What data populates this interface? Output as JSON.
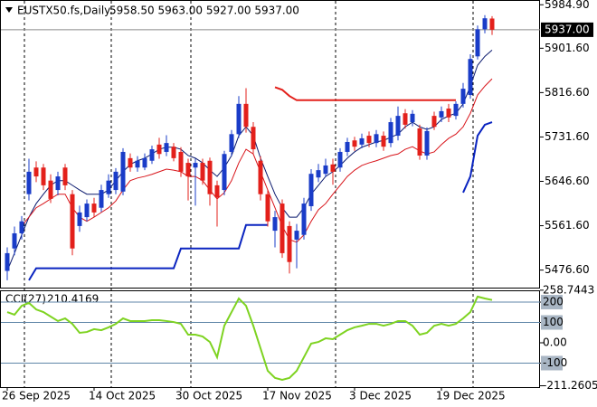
{
  "chart_data": [
    {
      "type": "candlestick",
      "title": "EUSTX50.fs,Daily",
      "subtitle": "5958.50 5963.00 5927.00 5937.00",
      "categories": [
        "26 Sep 2025",
        null,
        null,
        null,
        null,
        null,
        null,
        null,
        null,
        null,
        null,
        null,
        "14 Oct 2025",
        null,
        null,
        null,
        null,
        null,
        null,
        null,
        null,
        null,
        null,
        null,
        "30 Oct 2025",
        null,
        null,
        null,
        null,
        null,
        null,
        null,
        null,
        null,
        null,
        null,
        "17 Nov 2025",
        null,
        null,
        null,
        null,
        null,
        null,
        null,
        null,
        null,
        null,
        null,
        "3 Dec 2025",
        null,
        null,
        null,
        null,
        null,
        null,
        null,
        null,
        null,
        null,
        null,
        "19 Dec 2025",
        null,
        null,
        null,
        null,
        null,
        null,
        null
      ],
      "open": [
        5475,
        5518,
        5547,
        5622,
        5673,
        5673,
        5648,
        5630,
        5673,
        5622,
        5561,
        5578,
        5604,
        5596,
        5622,
        5630,
        5627,
        5691,
        5673,
        5673,
        5686,
        5717,
        5703,
        5713,
        5703,
        5682,
        5673,
        5682,
        5686,
        5639,
        5630,
        5703,
        5737,
        5795,
        5751,
        5686,
        5622,
        5552,
        5604,
        5561,
        5535,
        5544,
        5599,
        5654,
        5661,
        5679,
        5673,
        5703,
        5725,
        5717,
        5734,
        5720,
        5734,
        5720,
        5734,
        5777,
        5760,
        5748,
        5696,
        5772,
        5769,
        5786,
        5772,
        5795,
        5812,
        5886,
        5938,
        5958.5
      ],
      "high": [
        5520,
        5560,
        5580,
        5690,
        5685,
        5680,
        5660,
        5665,
        5680,
        5630,
        5600,
        5612,
        5615,
        5640,
        5660,
        5672,
        5710,
        5700,
        5695,
        5700,
        5715,
        5730,
        5735,
        5720,
        5712,
        5690,
        5690,
        5690,
        5692,
        5648,
        5705,
        5745,
        5810,
        5825,
        5760,
        5695,
        5630,
        5590,
        5612,
        5570,
        5565,
        5615,
        5670,
        5680,
        5690,
        5690,
        5710,
        5730,
        5732,
        5738,
        5742,
        5745,
        5742,
        5768,
        5790,
        5785,
        5783,
        5755,
        5750,
        5780,
        5790,
        5795,
        5800,
        5835,
        5890,
        5945,
        5965,
        5963
      ],
      "low": [
        5457,
        5505,
        5535,
        5610,
        5645,
        5630,
        5605,
        5620,
        5630,
        5505,
        5550,
        5570,
        5578,
        5588,
        5615,
        5622,
        5620,
        5665,
        5665,
        5668,
        5680,
        5690,
        5695,
        5685,
        5655,
        5610,
        5600,
        5640,
        5600,
        5560,
        5620,
        5695,
        5730,
        5740,
        5700,
        5610,
        5560,
        5520,
        5500,
        5470,
        5480,
        5535,
        5590,
        5645,
        5655,
        5640,
        5665,
        5695,
        5705,
        5710,
        5712,
        5712,
        5705,
        5712,
        5725,
        5748,
        5752,
        5688,
        5688,
        5745,
        5760,
        5760,
        5765,
        5788,
        5805,
        5880,
        5930,
        5927
      ],
      "close": [
        5509,
        5547,
        5570,
        5665,
        5656,
        5639,
        5613,
        5656,
        5639,
        5518,
        5587,
        5604,
        5587,
        5630,
        5648,
        5665,
        5703,
        5673,
        5686,
        5691,
        5708,
        5699,
        5720,
        5691,
        5665,
        5656,
        5682,
        5648,
        5622,
        5616,
        5699,
        5737,
        5795,
        5751,
        5708,
        5622,
        5570,
        5578,
        5509,
        5492,
        5552,
        5604,
        5661,
        5668,
        5677,
        5665,
        5703,
        5722,
        5713,
        5729,
        5720,
        5737,
        5713,
        5760,
        5772,
        5755,
        5776,
        5696,
        5743,
        5751,
        5781,
        5769,
        5795,
        5824,
        5881,
        5938,
        5959,
        5937
      ],
      "up_color": "#1a3cc8",
      "down_color": "#e3201b",
      "overlays": [
        {
          "color": "#0b1a6e",
          "values": [
            5475,
            5509,
            5544,
            5578,
            5604,
            5622,
            5639,
            5648,
            5648,
            5639,
            5630,
            5622,
            5622,
            5622,
            5630,
            5648,
            5665,
            5679,
            5686,
            5691,
            5699,
            5708,
            5712,
            5712,
            5708,
            5696,
            5691,
            5682,
            5668,
            5656,
            5673,
            5696,
            5734,
            5751,
            5734,
            5691,
            5656,
            5622,
            5596,
            5578,
            5578,
            5596,
            5622,
            5639,
            5656,
            5665,
            5677,
            5691,
            5703,
            5712,
            5717,
            5722,
            5725,
            5731,
            5737,
            5751,
            5760,
            5751,
            5746,
            5751,
            5765,
            5772,
            5777,
            5795,
            5829,
            5869,
            5886,
            5898
          ]
        },
        {
          "color": "#d8141a",
          "values": [
            null,
            null,
            5561,
            5578,
            5596,
            5604,
            5613,
            5622,
            5622,
            5596,
            5578,
            5570,
            5578,
            5587,
            5596,
            5609,
            5630,
            5648,
            5653,
            5656,
            5660,
            5665,
            5670,
            5668,
            5665,
            5656,
            5656,
            5648,
            5630,
            5613,
            5625,
            5648,
            5682,
            5708,
            5699,
            5665,
            5630,
            5596,
            5561,
            5535,
            5530,
            5544,
            5570,
            5592,
            5604,
            5622,
            5639,
            5656,
            5668,
            5677,
            5682,
            5686,
            5691,
            5696,
            5699,
            5708,
            5713,
            5705,
            5699,
            5703,
            5717,
            5729,
            5737,
            5751,
            5777,
            5812,
            5829,
            5843
          ]
        },
        {
          "color": "#e3201b",
          "width": 2,
          "values": [
            null,
            null,
            null,
            null,
            null,
            null,
            null,
            null,
            null,
            null,
            null,
            null,
            null,
            null,
            null,
            null,
            null,
            null,
            null,
            null,
            null,
            null,
            null,
            null,
            null,
            null,
            null,
            null,
            null,
            null,
            null,
            null,
            null,
            null,
            null,
            null,
            null,
            5827,
            5822,
            5810,
            5802,
            5802,
            5802,
            5802,
            5802,
            5802,
            5802,
            5802,
            5802,
            5802,
            5802,
            5802,
            5802,
            5802,
            5802,
            5802,
            5802,
            5802,
            5802,
            5802,
            5802,
            5802,
            5802,
            null,
            null,
            null,
            null,
            null
          ]
        },
        {
          "color": "#0a24c0",
          "width": 2,
          "values": [
            null,
            null,
            null,
            5457,
            5480,
            5480,
            5480,
            5480,
            5480,
            5480,
            5480,
            5480,
            5480,
            5480,
            5480,
            5480,
            5480,
            5480,
            5480,
            5480,
            5480,
            5480,
            5480,
            5480,
            5518,
            5518,
            5518,
            5518,
            5518,
            5518,
            5518,
            5518,
            5518,
            5563,
            5563,
            5563,
            5563,
            null,
            null,
            null,
            null,
            null,
            null,
            null,
            null,
            null,
            null,
            null,
            null,
            null,
            null,
            null,
            null,
            null,
            null,
            null,
            null,
            null,
            null,
            null,
            null,
            null,
            null,
            5625,
            5656,
            5734,
            5755,
            5760
          ]
        }
      ],
      "price_label": {
        "value": 5937,
        "label": "5937.00"
      },
      "ylim": [
        5443,
        5994
      ],
      "yticks": [
        {
          "value": 5984.9,
          "label": "5984.90"
        },
        {
          "value": 5901.6,
          "label": "5901.60"
        },
        {
          "value": 5816.6,
          "label": "5816.60"
        },
        {
          "value": 5731.6,
          "label": "5731.60"
        },
        {
          "value": 5646.6,
          "label": "5646.60"
        },
        {
          "value": 5561.6,
          "label": "5561.60"
        },
        {
          "value": 5476.6,
          "label": "5476.60"
        }
      ]
    },
    {
      "type": "line",
      "title": "CCI(27)",
      "series": [
        {
          "color": "#7ed321",
          "values": [
            151,
            138,
            182,
            196,
            164,
            151,
            129,
            107,
            120,
            93,
            49,
            53,
            67,
            62,
            76,
            93,
            120,
            107,
            107,
            107,
            111,
            111,
            107,
            102,
            93,
            40,
            40,
            31,
            4,
            -71,
            84,
            151,
            218,
            182,
            84,
            -27,
            -138,
            -173,
            -182,
            -173,
            -138,
            -71,
            -4,
            4,
            22,
            18,
            40,
            62,
            76,
            84,
            93,
            93,
            84,
            93,
            107,
            107,
            84,
            40,
            49,
            84,
            93,
            84,
            93,
            120,
            151,
            227,
            218,
            210.4169
          ]
        }
      ],
      "ylim": [
        -218,
        258
      ],
      "yticks": [
        258.7443,
        200,
        100,
        {
          "value": 0,
          "label": "0.00"
        },
        -100,
        -211.2605
      ],
      "levels": [
        200,
        100,
        -100
      ]
    }
  ]
}
